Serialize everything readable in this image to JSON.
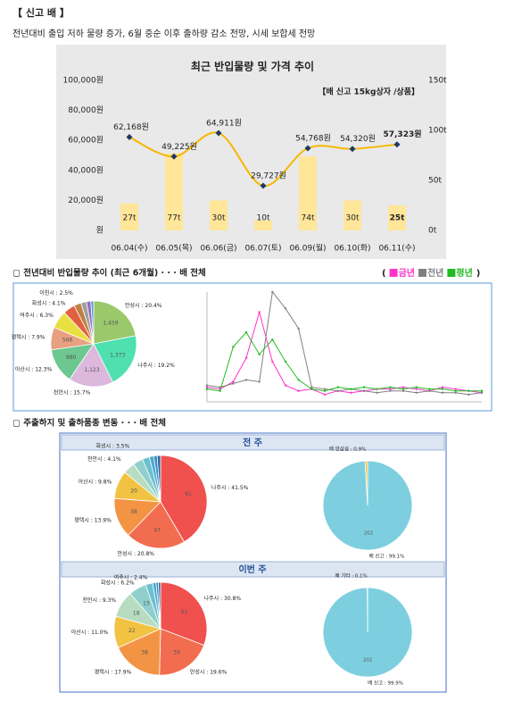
{
  "header": {
    "title": "【 신고 배 】",
    "summary": "전년대비 출입 저하 물량 증가, 6월 중순 이후 출하량 감소 전망, 시세 보합세 전망"
  },
  "sections": {
    "trend_title": "▢ 전년대비 반입물량 추이 (최근 6개월) · · · 배 전체",
    "origin_title": "▢ 주출하지 및 출하품종 변동 · · · 배 전체",
    "previous_week": "전 주",
    "this_week": "이번 주"
  },
  "chart_data": [
    {
      "type": "combo",
      "title": "최근 반입물량 및 가격 추이",
      "annotation": "【배 신고 15kg상자 /상품】",
      "categories": [
        "06.04(수)",
        "06.05(목)",
        "06.06(금)",
        "06.07(토)",
        "06.09(월)",
        "06.10(화)",
        "06.11(수)"
      ],
      "series": [
        {
          "type": "bar",
          "axis": "y2",
          "color": "#ffe699",
          "values": [
            27,
            77,
            30,
            10,
            74,
            30,
            25
          ],
          "value_labels": [
            "27t",
            "77t",
            "30t",
            "10t",
            "74t",
            "30t",
            "25t"
          ]
        },
        {
          "type": "line",
          "color": "#f5b800",
          "values": [
            62168,
            49225,
            64911,
            29727,
            54768,
            54320,
            57323
          ],
          "value_labels": [
            "62,168원",
            "49,225원",
            "64,911원",
            "29,727원",
            "54,768원",
            "54,320원",
            "57,323원"
          ]
        }
      ],
      "ylim": [
        0,
        100000
      ],
      "yticks": [
        {
          "value": 0,
          "label": "원"
        },
        {
          "value": 20000,
          "label": "20,000원"
        },
        {
          "value": 40000,
          "label": "40,000원"
        },
        {
          "value": 60000,
          "label": "60,000원"
        },
        {
          "value": 80000,
          "label": "80,000원"
        },
        {
          "value": 100000,
          "label": "100,000원"
        }
      ],
      "y2lim": [
        0,
        150
      ],
      "y2ticks": [
        {
          "value": 0,
          "label": "0t"
        },
        {
          "value": 50,
          "label": "50t"
        },
        {
          "value": 100,
          "label": "100t"
        },
        {
          "value": 150,
          "label": "150t"
        }
      ]
    },
    {
      "type": "pie",
      "values": [
        20.4,
        19.2,
        15.7,
        12.3,
        7.9,
        6.3,
        4.1,
        2.5,
        2.0,
        1.5,
        1.0
      ],
      "value_labels": [
        "안성시 : 20.4%",
        "나주시 : 19.2%",
        "천안시 : 15.7%",
        "아산시 : 12.3%",
        "평택시 : 7.9%",
        "여주시 : 6.3%",
        "화성시 : 4.1%",
        "이천시 : 2.5%",
        null,
        null,
        null
      ],
      "count_labels": [
        "1,459",
        "1,373",
        "1,123",
        "880",
        "568",
        null,
        null,
        null,
        null,
        null,
        null
      ],
      "colors": [
        "#9bc86a",
        "#4fe0b0",
        "#dcb8dc",
        "#6cc890",
        "#e8a080",
        "#e8e040",
        "#e06040",
        "#c08040",
        "#a0a0a0",
        "#9070c0",
        "#60a0d0"
      ]
    },
    {
      "type": "line",
      "legend_brackets": [
        "(",
        ")"
      ],
      "x": [
        1,
        2,
        3,
        4,
        5,
        6,
        7,
        8,
        9,
        10,
        11,
        12,
        13,
        14,
        15,
        16,
        17,
        18,
        19,
        20,
        21,
        22
      ],
      "xlim": [
        1,
        22
      ],
      "ylim": [
        0,
        300
      ],
      "series": [
        {
          "name": "금년",
          "color": "#ff33cc",
          "values": [
            40,
            35,
            55,
            120,
            245,
            110,
            45,
            30,
            35,
            20,
            30,
            25,
            30,
            35,
            35,
            40,
            35,
            30,
            40,
            35,
            30,
            25
          ]
        },
        {
          "name": "전년",
          "color": "#808080",
          "values": [
            45,
            40,
            50,
            60,
            55,
            300,
            255,
            200,
            40,
            35,
            30,
            35,
            30,
            25,
            30,
            30,
            25,
            30,
            25,
            25,
            20,
            25
          ]
        },
        {
          "name": "평년",
          "color": "#22bb22",
          "values": [
            35,
            30,
            150,
            190,
            130,
            170,
            110,
            60,
            35,
            30,
            40,
            35,
            40,
            35,
            40,
            35,
            40,
            35,
            35,
            30,
            30,
            30
          ]
        }
      ]
    },
    {
      "type": "pie",
      "values": [
        41.5,
        20.8,
        13.9,
        9.8,
        4.1,
        3.5,
        2.5,
        1.5,
        1.2,
        1.2
      ],
      "value_labels": [
        "나주시 : 41.5%",
        "안성시 : 20.8%",
        "평택시 : 13.9%",
        "아산시 : 9.8%",
        "천안시 : 4.1%",
        "화성시 : 3.5%",
        null,
        null,
        null,
        null
      ],
      "count_labels": [
        "81",
        "47",
        "38",
        "20",
        null,
        null,
        null,
        null,
        null,
        null
      ],
      "colors": [
        "#f0504e",
        "#f26d4f",
        "#f39444",
        "#f2c343",
        "#b8dcc0",
        "#8fd0cc",
        "#6cc0d0",
        "#4aa8d0",
        "#3b88c0",
        "#2c6aa0"
      ]
    },
    {
      "type": "pie",
      "values": [
        99.1,
        0.9
      ],
      "value_labels": [
        "배 신고 : 99.1%",
        "배 만삼길 : 0.9%"
      ],
      "count_labels": [
        "202",
        null
      ],
      "colors": [
        "#7dcfe0",
        "#f2c343"
      ]
    },
    {
      "type": "pie",
      "values": [
        30.8,
        19.6,
        17.9,
        11.0,
        9.3,
        6.2,
        2.4,
        1.2,
        0.8,
        0.8
      ],
      "value_labels": [
        "나주시 : 30.8%",
        "안성시 : 19.6%",
        "평택시 : 17.9%",
        "아산시 : 11.0%",
        "천안시 : 9.3%",
        "화성시 : 6.2%",
        "여주시 : 2.4%",
        null,
        null,
        null
      ],
      "count_labels": [
        "61",
        "39",
        "38",
        "22",
        "18",
        "13",
        null,
        null,
        null,
        null
      ],
      "colors": [
        "#f0504e",
        "#f26d4f",
        "#f39444",
        "#f2c343",
        "#b8dcc0",
        "#8fd0cc",
        "#6cc0d0",
        "#4aa8d0",
        "#3b88c0",
        "#2c6aa0"
      ]
    },
    {
      "type": "pie",
      "values": [
        99.9,
        0.1
      ],
      "value_labels": [
        "배 신고 : 99.9%",
        "배 기타 : 0.1%"
      ],
      "count_labels": [
        "202",
        null
      ],
      "colors": [
        "#7dcfe0",
        "#f2c343"
      ]
    }
  ]
}
